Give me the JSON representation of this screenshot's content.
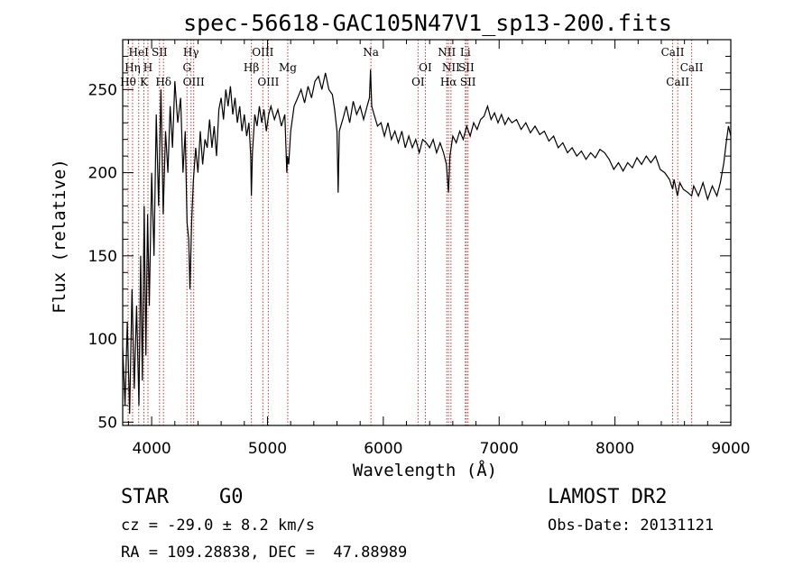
{
  "chart_data": {
    "type": "line",
    "title": "spec-56618-GAC105N47V1_sp13-200.fits",
    "xlabel": "Wavelength (Å)",
    "ylabel": "Flux (relative)",
    "xlim": [
      3750,
      9000
    ],
    "ylim": [
      48,
      280
    ],
    "xticks": [
      4000,
      5000,
      6000,
      7000,
      8000,
      9000
    ],
    "yticks": [
      50,
      100,
      150,
      200,
      250
    ],
    "grid": false,
    "series": [
      {
        "values": [
          [
            3750,
            95
          ],
          [
            3770,
            60
          ],
          [
            3790,
            110
          ],
          [
            3810,
            55
          ],
          [
            3830,
            130
          ],
          [
            3850,
            70
          ],
          [
            3870,
            120
          ],
          [
            3890,
            60
          ],
          [
            3905,
            150
          ],
          [
            3920,
            75
          ],
          [
            3935,
            180
          ],
          [
            3950,
            90
          ],
          [
            3965,
            175
          ],
          [
            3980,
            120
          ],
          [
            4000,
            200
          ],
          [
            4020,
            150
          ],
          [
            4040,
            235
          ],
          [
            4060,
            180
          ],
          [
            4080,
            250
          ],
          [
            4100,
            175
          ],
          [
            4120,
            225
          ],
          [
            4140,
            200
          ],
          [
            4160,
            240
          ],
          [
            4180,
            215
          ],
          [
            4200,
            255
          ],
          [
            4225,
            230
          ],
          [
            4250,
            245
          ],
          [
            4270,
            200
          ],
          [
            4290,
            225
          ],
          [
            4305,
            170
          ],
          [
            4320,
            160
          ],
          [
            4330,
            130
          ],
          [
            4345,
            170
          ],
          [
            4360,
            195
          ],
          [
            4380,
            215
          ],
          [
            4400,
            200
          ],
          [
            4420,
            225
          ],
          [
            4440,
            205
          ],
          [
            4460,
            220
          ],
          [
            4480,
            215
          ],
          [
            4500,
            232
          ],
          [
            4520,
            215
          ],
          [
            4540,
            228
          ],
          [
            4560,
            210
          ],
          [
            4580,
            238
          ],
          [
            4600,
            245
          ],
          [
            4620,
            232
          ],
          [
            4640,
            250
          ],
          [
            4660,
            240
          ],
          [
            4680,
            252
          ],
          [
            4700,
            235
          ],
          [
            4720,
            245
          ],
          [
            4740,
            230
          ],
          [
            4760,
            240
          ],
          [
            4780,
            225
          ],
          [
            4800,
            235
          ],
          [
            4820,
            222
          ],
          [
            4840,
            230
          ],
          [
            4855,
            210
          ],
          [
            4861,
            186
          ],
          [
            4870,
            212
          ],
          [
            4890,
            235
          ],
          [
            4910,
            228
          ],
          [
            4930,
            240
          ],
          [
            4950,
            230
          ],
          [
            4970,
            238
          ],
          [
            4990,
            225
          ],
          [
            5010,
            235
          ],
          [
            5030,
            240
          ],
          [
            5060,
            232
          ],
          [
            5090,
            238
          ],
          [
            5120,
            228
          ],
          [
            5150,
            235
          ],
          [
            5167,
            200
          ],
          [
            5172,
            210
          ],
          [
            5183,
            205
          ],
          [
            5200,
            225
          ],
          [
            5230,
            240
          ],
          [
            5260,
            245
          ],
          [
            5290,
            250
          ],
          [
            5320,
            242
          ],
          [
            5350,
            252
          ],
          [
            5380,
            245
          ],
          [
            5410,
            255
          ],
          [
            5440,
            258
          ],
          [
            5470,
            250
          ],
          [
            5500,
            260
          ],
          [
            5530,
            250
          ],
          [
            5560,
            247
          ],
          [
            5580,
            238
          ],
          [
            5600,
            225
          ],
          [
            5610,
            188
          ],
          [
            5620,
            225
          ],
          [
            5650,
            232
          ],
          [
            5680,
            240
          ],
          [
            5710,
            230
          ],
          [
            5740,
            243
          ],
          [
            5770,
            235
          ],
          [
            5800,
            240
          ],
          [
            5830,
            232
          ],
          [
            5860,
            240
          ],
          [
            5880,
            245
          ],
          [
            5890,
            262
          ],
          [
            5900,
            240
          ],
          [
            5920,
            235
          ],
          [
            5950,
            228
          ],
          [
            5980,
            230
          ],
          [
            6010,
            222
          ],
          [
            6040,
            230
          ],
          [
            6070,
            220
          ],
          [
            6100,
            225
          ],
          [
            6130,
            218
          ],
          [
            6160,
            225
          ],
          [
            6190,
            215
          ],
          [
            6220,
            222
          ],
          [
            6250,
            215
          ],
          [
            6280,
            220
          ],
          [
            6310,
            212
          ],
          [
            6340,
            220
          ],
          [
            6370,
            218
          ],
          [
            6400,
            215
          ],
          [
            6430,
            220
          ],
          [
            6460,
            212
          ],
          [
            6490,
            218
          ],
          [
            6520,
            212
          ],
          [
            6545,
            205
          ],
          [
            6563,
            188
          ],
          [
            6575,
            210
          ],
          [
            6600,
            222
          ],
          [
            6630,
            218
          ],
          [
            6660,
            225
          ],
          [
            6690,
            220
          ],
          [
            6720,
            228
          ],
          [
            6750,
            222
          ],
          [
            6780,
            230
          ],
          [
            6810,
            226
          ],
          [
            6840,
            232
          ],
          [
            6870,
            234
          ],
          [
            6900,
            240
          ],
          [
            6930,
            232
          ],
          [
            6960,
            236
          ],
          [
            6990,
            230
          ],
          [
            7020,
            235
          ],
          [
            7050,
            229
          ],
          [
            7080,
            233
          ],
          [
            7110,
            230
          ],
          [
            7150,
            232
          ],
          [
            7190,
            226
          ],
          [
            7230,
            230
          ],
          [
            7270,
            224
          ],
          [
            7310,
            228
          ],
          [
            7350,
            223
          ],
          [
            7390,
            225
          ],
          [
            7430,
            219
          ],
          [
            7470,
            222
          ],
          [
            7510,
            215
          ],
          [
            7550,
            218
          ],
          [
            7590,
            212
          ],
          [
            7630,
            215
          ],
          [
            7670,
            210
          ],
          [
            7710,
            213
          ],
          [
            7750,
            208
          ],
          [
            7790,
            212
          ],
          [
            7830,
            209
          ],
          [
            7870,
            214
          ],
          [
            7910,
            212
          ],
          [
            7950,
            208
          ],
          [
            7990,
            202
          ],
          [
            8030,
            206
          ],
          [
            8070,
            201
          ],
          [
            8110,
            206
          ],
          [
            8150,
            203
          ],
          [
            8190,
            209
          ],
          [
            8230,
            205
          ],
          [
            8270,
            210
          ],
          [
            8310,
            206
          ],
          [
            8350,
            210
          ],
          [
            8390,
            202
          ],
          [
            8430,
            200
          ],
          [
            8470,
            196
          ],
          [
            8498,
            190
          ],
          [
            8510,
            196
          ],
          [
            8540,
            186
          ],
          [
            8560,
            194
          ],
          [
            8590,
            190
          ],
          [
            8630,
            188
          ],
          [
            8662,
            186
          ],
          [
            8680,
            192
          ],
          [
            8720,
            186
          ],
          [
            8760,
            194
          ],
          [
            8800,
            184
          ],
          [
            8840,
            192
          ],
          [
            8880,
            186
          ],
          [
            8910,
            194
          ],
          [
            8940,
            206
          ],
          [
            8960,
            218
          ],
          [
            8980,
            228
          ],
          [
            9000,
            222
          ]
        ]
      }
    ],
    "annotations": [
      {
        "label": "HeI",
        "x": 3888,
        "row": 0
      },
      {
        "label": "SII",
        "x": 4068,
        "row": 0
      },
      {
        "label": "Hγ",
        "x": 4340,
        "row": 0
      },
      {
        "label": "OIII",
        "x": 4960,
        "row": 0
      },
      {
        "label": "Na",
        "x": 5893,
        "row": 0
      },
      {
        "label": "NII",
        "x": 6548,
        "row": 0
      },
      {
        "label": "Li",
        "x": 6708,
        "row": 0
      },
      {
        "label": "CaII",
        "x": 8498,
        "row": 0
      },
      {
        "label": "Hη",
        "x": 3835,
        "row": 1
      },
      {
        "label": "H",
        "x": 3968,
        "row": 1
      },
      {
        "label": "G",
        "x": 4305,
        "row": 1
      },
      {
        "label": "Hβ",
        "x": 4861,
        "row": 1
      },
      {
        "label": "Mg",
        "x": 5175,
        "row": 1
      },
      {
        "label": "OI",
        "x": 6363,
        "row": 1
      },
      {
        "label": "NII",
        "x": 6584,
        "row": 1
      },
      {
        "label": "SII",
        "x": 6717,
        "row": 1
      },
      {
        "label": "CaII",
        "x": 8662,
        "row": 1
      },
      {
        "label": "Hθ",
        "x": 3797,
        "row": 2
      },
      {
        "label": "K",
        "x": 3933,
        "row": 2
      },
      {
        "label": "Hδ",
        "x": 4102,
        "row": 2
      },
      {
        "label": "OIII",
        "x": 4363,
        "row": 2
      },
      {
        "label": "OIII",
        "x": 5007,
        "row": 2
      },
      {
        "label": "OI",
        "x": 6300,
        "row": 2
      },
      {
        "label": "Hα",
        "x": 6563,
        "row": 2
      },
      {
        "label": "SII",
        "x": 6731,
        "row": 2
      },
      {
        "label": "CaII",
        "x": 8542,
        "row": 2
      }
    ],
    "line_color": "#000000",
    "marker_color": "#cc3333"
  },
  "footer": {
    "object_class": "STAR",
    "subclass": "G0",
    "redshift": "cz = -29.0 ± 8.2 km/s",
    "coords": "RA = 109.28838, DEC =  47.88989",
    "survey": "LAMOST DR2",
    "obs_date": "Obs-Date: 20131121"
  }
}
